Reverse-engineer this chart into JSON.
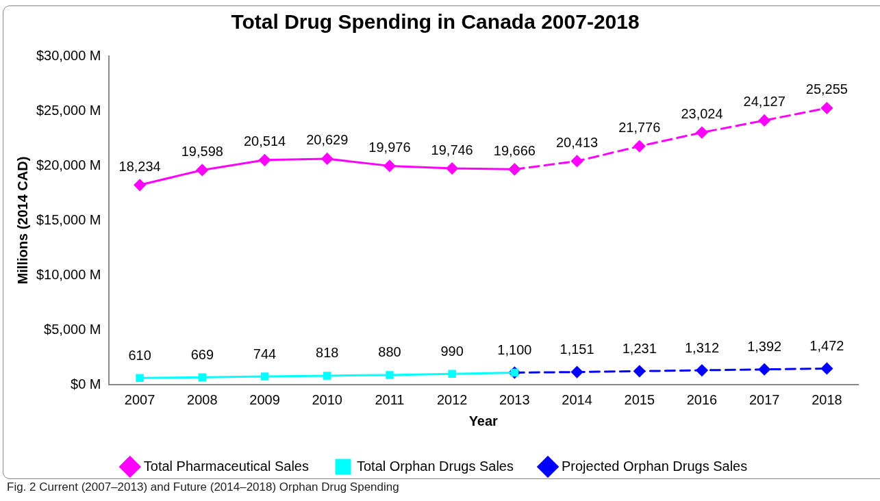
{
  "chart_data": {
    "type": "line",
    "title": "Total Drug Spending in Canada 2007-2018",
    "xlabel": "Year",
    "ylabel": "Millions (2014 CAD)",
    "categories": [
      "2007",
      "2008",
      "2009",
      "2010",
      "2011",
      "2012",
      "2013",
      "2014",
      "2015",
      "2016",
      "2017",
      "2018"
    ],
    "series": [
      {
        "name": "Total Pharmaceutical Sales",
        "color": "#ff00ff",
        "marker": "diamond",
        "line_style": "solid",
        "values": [
          18234,
          19598,
          20514,
          20629,
          19976,
          19746,
          19666,
          null,
          null,
          null,
          null,
          null
        ],
        "value_labels": [
          "18,234",
          "19,598",
          "20,514",
          "20,629",
          "19,976",
          "19,746",
          "19,666",
          null,
          null,
          null,
          null,
          null
        ]
      },
      {
        "color": "#ff00ff",
        "marker": "diamond",
        "line_style": "dashed",
        "values": [
          null,
          null,
          null,
          null,
          null,
          null,
          19666,
          20413,
          21776,
          23024,
          24127,
          25255
        ],
        "value_labels": [
          null,
          null,
          null,
          null,
          null,
          null,
          null,
          "20,413",
          "21,776",
          "23,024",
          "24,127",
          "25,255"
        ]
      },
      {
        "name": "Total Orphan Drugs Sales",
        "color": "#00ffff",
        "marker": "square",
        "line_style": "solid",
        "values": [
          610,
          669,
          744,
          818,
          880,
          990,
          1100,
          null,
          null,
          null,
          null,
          null
        ],
        "value_labels": [
          "610",
          "669",
          "744",
          "818",
          "880",
          "990",
          "1,100",
          null,
          null,
          null,
          null,
          null
        ]
      },
      {
        "name": "Projected Orphan Drugs Sales",
        "color": "#0000ff",
        "marker": "diamond",
        "line_style": "dashed",
        "values": [
          null,
          null,
          null,
          null,
          null,
          null,
          1100,
          1151,
          1231,
          1312,
          1392,
          1472
        ],
        "value_labels": [
          null,
          null,
          null,
          null,
          null,
          null,
          null,
          "1,151",
          "1,231",
          "1,312",
          "1,392",
          "1,472"
        ]
      }
    ],
    "ylim": [
      0,
      30000
    ],
    "yticks": [
      {
        "value": 0,
        "label": "$0 M"
      },
      {
        "value": 5000,
        "label": "$5,000 M"
      },
      {
        "value": 10000,
        "label": "$10,000 M"
      },
      {
        "value": 15000,
        "label": "$15,000 M"
      },
      {
        "value": 20000,
        "label": "$20,000 M"
      },
      {
        "value": 25000,
        "label": "$25,000 M"
      },
      {
        "value": 30000,
        "label": "$30,000 M"
      }
    ],
    "grid": false,
    "legend": "bottom",
    "annotations": [
      "Fig. 2 Current (2007–2013) and Future (2014–2018) Orphan Drug Spending"
    ]
  }
}
